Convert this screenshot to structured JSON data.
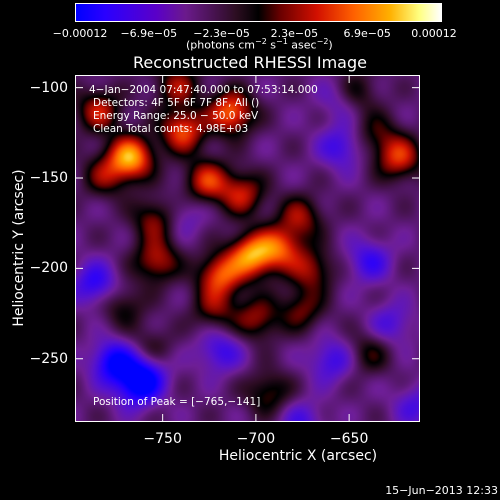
{
  "chart_data": {
    "type": "heatmap",
    "title": "Reconstructed RHESSI Image",
    "xlabel": "Heliocentric X (arcsec)",
    "ylabel": "Heliocentric Y (arcsec)",
    "xlim": [
      -797,
      -612
    ],
    "ylim": [
      -285,
      -93
    ],
    "x_ticks": [
      "−750",
      "−700",
      "−650"
    ],
    "y_ticks": [
      "−100",
      "−150",
      "−200",
      "−250"
    ],
    "colorbar": {
      "ticks": [
        "−0.00012",
        "−6.9e−05",
        "−2.3e−05",
        "2.3e−05",
        "6.9e−05",
        "0.00012"
      ],
      "units": "(photons cm",
      "units_exp1": "−2",
      "units_mid": " s",
      "units_exp2": "−1",
      "units_end": " asec",
      "units_exp3": "−2",
      "units_close": ")",
      "range": [
        -0.00012,
        0.00012
      ]
    },
    "annotations": {
      "time_range": " 4−Jan−2004 07:47:40.000 to 07:53:14.000",
      "detectors": "Detectors: 4F 5F 6F 7F 8F, All ()",
      "energy": "Energy Range: 25.0 − 50.0 keV",
      "method": "Clean     Total counts: 4.98E+03",
      "peak": "Position of Peak = [−765,−141]"
    },
    "peak_position": [
      -765,
      -141
    ],
    "sources": [
      {
        "x": -768,
        "y": -138,
        "value": 0.00012
      },
      {
        "x": -740,
        "y": -123,
        "value": 9e-05
      },
      {
        "x": -714,
        "y": -113,
        "value": 0.0001
      },
      {
        "x": -727,
        "y": -151,
        "value": 8e-05
      },
      {
        "x": -708,
        "y": -158,
        "value": 7e-05
      },
      {
        "x": -703,
        "y": -192,
        "value": 0.00011
      },
      {
        "x": -720,
        "y": -203,
        "value": 9e-05
      },
      {
        "x": -688,
        "y": -188,
        "value": 8e-05
      },
      {
        "x": -677,
        "y": -171,
        "value": 6e-05
      },
      {
        "x": -671,
        "y": -200,
        "value": 6e-05
      },
      {
        "x": -754,
        "y": -195,
        "value": 7e-05
      },
      {
        "x": -755,
        "y": -172,
        "value": 6e-05
      },
      {
        "x": -723,
        "y": -222,
        "value": 5e-05
      },
      {
        "x": -700,
        "y": -227,
        "value": 6e-05
      },
      {
        "x": -676,
        "y": -222,
        "value": 5e-05
      },
      {
        "x": -785,
        "y": -112,
        "value": 7e-05
      },
      {
        "x": -782,
        "y": -148,
        "value": 5e-05
      },
      {
        "x": -624,
        "y": -138,
        "value": 8e-05
      },
      {
        "x": -636,
        "y": -125,
        "value": 4e-05
      },
      {
        "x": -743,
        "y": -98,
        "value": 6e-05
      },
      {
        "x": -648,
        "y": -102,
        "value": 5e-05
      },
      {
        "x": -694,
        "y": -268,
        "value": 5e-05
      },
      {
        "x": -640,
        "y": -246,
        "value": 4e-05
      },
      {
        "x": -772,
        "y": -220,
        "value": 4e-05
      },
      {
        "x": -757,
        "y": -243,
        "value": 3e-05
      },
      {
        "x": -777,
        "y": -251,
        "value": -8e-05
      },
      {
        "x": -760,
        "y": -258,
        "value": -6e-05
      },
      {
        "x": -765,
        "y": -265,
        "value": -6e-05
      },
      {
        "x": -720,
        "y": -245,
        "value": -5e-05
      },
      {
        "x": -787,
        "y": -208,
        "value": -6e-05
      },
      {
        "x": -655,
        "y": -132,
        "value": -5e-05
      },
      {
        "x": -640,
        "y": -195,
        "value": -5e-05
      },
      {
        "x": -628,
        "y": -230,
        "value": -4e-05
      },
      {
        "x": -740,
        "y": -170,
        "value": -3e-05
      },
      {
        "x": -660,
        "y": -250,
        "value": -5e-05
      },
      {
        "x": -676,
        "y": -284,
        "value": -4e-05
      },
      {
        "x": -615,
        "y": -275,
        "value": -4e-05
      },
      {
        "x": -655,
        "y": -105,
        "value": -4e-05
      }
    ]
  },
  "footer": {
    "date": "15−Jun−2013 12:33"
  }
}
